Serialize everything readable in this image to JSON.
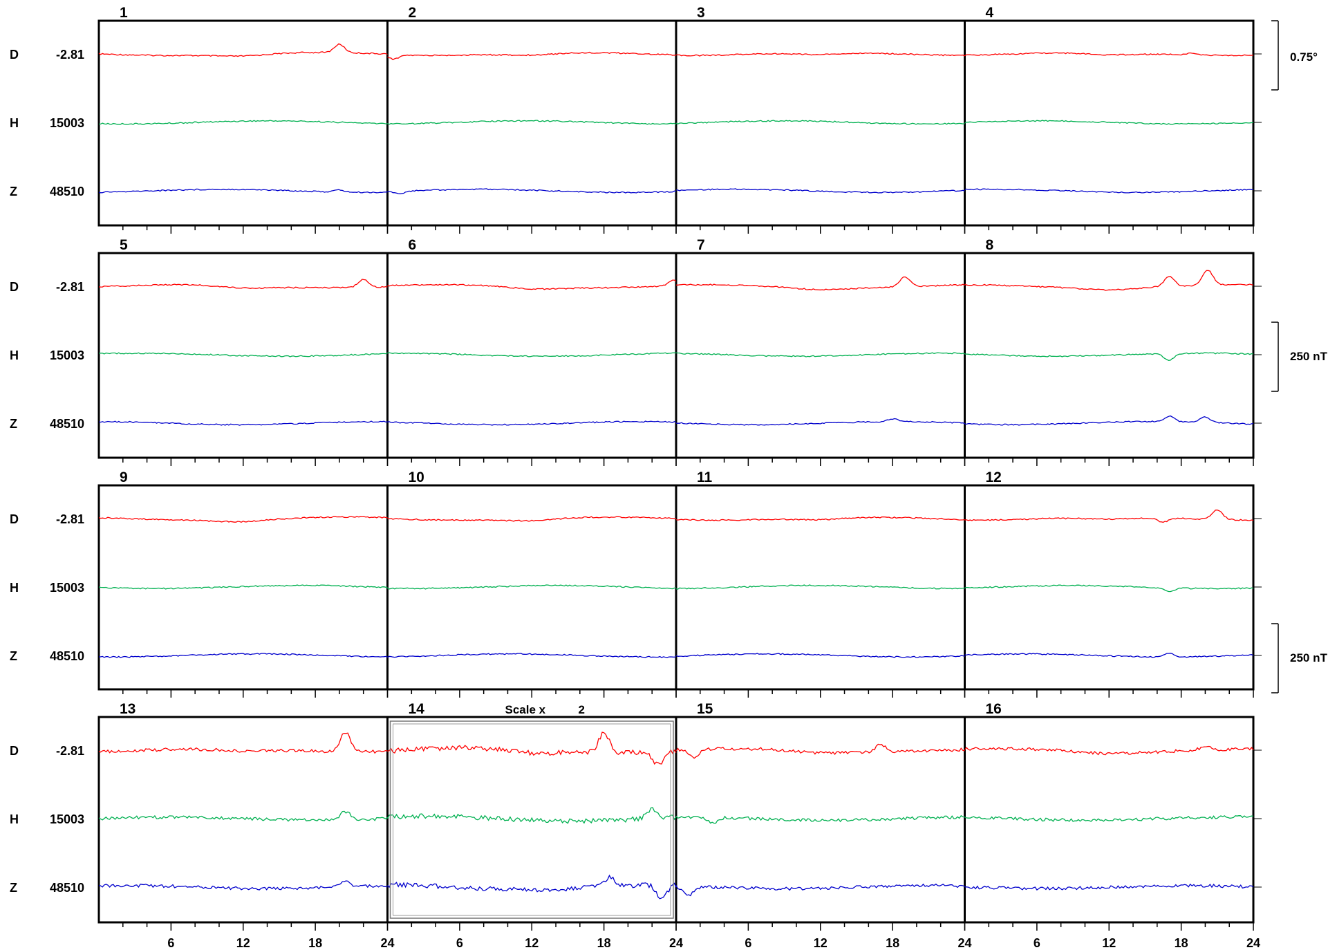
{
  "chart_data": {
    "type": "line",
    "x_unit": "hour of day (UT)",
    "x_range": [
      0,
      24
    ],
    "x_ticks": [
      "6",
      "12",
      "18",
      "24"
    ],
    "components": [
      {
        "name": "D",
        "baseline": "-2.81",
        "color": "#ff0000"
      },
      {
        "name": "H",
        "baseline": "15003",
        "color": "#00b050"
      },
      {
        "name": "Z",
        "baseline": "48510",
        "color": "#0000cc"
      }
    ],
    "scale_bars": [
      {
        "label": "0.75°",
        "component": "D"
      },
      {
        "label": "250 nT",
        "component": "H"
      },
      {
        "label": "250 nT",
        "component": "Z"
      }
    ],
    "scaled_day": {
      "day": "14",
      "label": "Scale x",
      "factor": "2"
    },
    "days": [
      {
        "day": "1",
        "events": [
          {
            "c": 0,
            "t": 20,
            "a": 12
          },
          {
            "c": 2,
            "t": 20,
            "a": 3
          }
        ]
      },
      {
        "day": "2",
        "events": [
          {
            "c": 0,
            "t": 0.5,
            "a": -6
          },
          {
            "c": 2,
            "t": 1,
            "a": -4
          }
        ]
      },
      {
        "day": "3",
        "events": []
      },
      {
        "day": "4",
        "events": [
          {
            "c": 0,
            "t": 19,
            "a": 3
          }
        ]
      },
      {
        "day": "5",
        "events": [
          {
            "c": 0,
            "t": 22,
            "a": 12
          }
        ]
      },
      {
        "day": "6",
        "events": [
          {
            "c": 0,
            "t": 23.8,
            "a": 8
          }
        ]
      },
      {
        "day": "7",
        "events": [
          {
            "c": 0,
            "t": 19,
            "a": 14
          },
          {
            "c": 2,
            "t": 18,
            "a": 4
          }
        ]
      },
      {
        "day": "8",
        "events": [
          {
            "c": 0,
            "t": 17,
            "a": 14
          },
          {
            "c": 0,
            "t": 20.2,
            "a": 22
          },
          {
            "c": 1,
            "t": 17,
            "a": -10
          },
          {
            "c": 2,
            "t": 17,
            "a": 8
          },
          {
            "c": 2,
            "t": 20,
            "a": 8
          }
        ]
      },
      {
        "day": "9",
        "events": []
      },
      {
        "day": "10",
        "events": []
      },
      {
        "day": "11",
        "events": []
      },
      {
        "day": "12",
        "events": [
          {
            "c": 0,
            "t": 16.5,
            "a": -6
          },
          {
            "c": 0,
            "t": 21,
            "a": 14
          },
          {
            "c": 1,
            "t": 17,
            "a": -5
          },
          {
            "c": 2,
            "t": 17,
            "a": 5
          }
        ]
      },
      {
        "day": "13",
        "events": [
          {
            "c": 0,
            "t": 20.5,
            "a": 28
          },
          {
            "c": 1,
            "t": 20.5,
            "a": 12
          },
          {
            "c": 2,
            "t": 20.5,
            "a": 7
          }
        ]
      },
      {
        "day": "14",
        "events": [
          {
            "c": 0,
            "t": 18,
            "a": 18
          },
          {
            "c": 0,
            "t": 22.5,
            "a": -12
          },
          {
            "c": 1,
            "t": 22,
            "a": 8
          },
          {
            "c": 2,
            "t": 18.5,
            "a": 8
          },
          {
            "c": 2,
            "t": 22.8,
            "a": -12
          }
        ]
      },
      {
        "day": "15",
        "events": [
          {
            "c": 0,
            "t": 1.5,
            "a": -12
          },
          {
            "c": 0,
            "t": 17,
            "a": 10
          },
          {
            "c": 1,
            "t": 3,
            "a": -8
          },
          {
            "c": 2,
            "t": 1,
            "a": -14
          }
        ]
      },
      {
        "day": "16",
        "events": [
          {
            "c": 0,
            "t": 20,
            "a": 6
          }
        ]
      }
    ]
  }
}
